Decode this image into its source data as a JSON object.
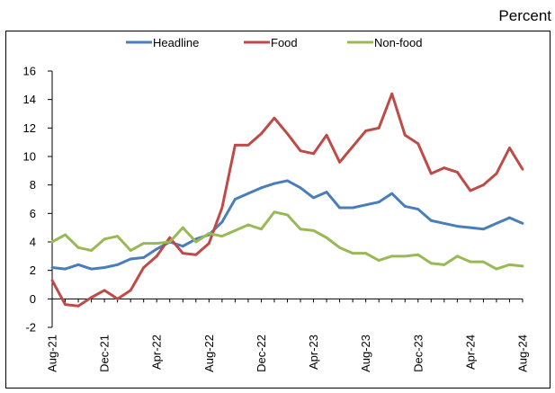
{
  "unit_label": "Percent",
  "chart_data": {
    "type": "line",
    "title": "",
    "xlabel": "",
    "ylabel": "",
    "ylim": [
      -2,
      16
    ],
    "yticks": [
      -2,
      0,
      2,
      4,
      6,
      8,
      10,
      12,
      14,
      16
    ],
    "grid": false,
    "legend_position": "top",
    "x": [
      "Aug-21",
      "Sep-21",
      "Oct-21",
      "Nov-21",
      "Dec-21",
      "Jan-22",
      "Feb-22",
      "Mar-22",
      "Apr-22",
      "May-22",
      "Jun-22",
      "Jul-22",
      "Aug-22",
      "Sep-22",
      "Oct-22",
      "Nov-22",
      "Dec-22",
      "Jan-23",
      "Feb-23",
      "Mar-23",
      "Apr-23",
      "May-23",
      "Jun-23",
      "Jul-23",
      "Aug-23",
      "Sep-23",
      "Oct-23",
      "Nov-23",
      "Dec-23",
      "Jan-24",
      "Feb-24",
      "Mar-24",
      "Apr-24",
      "May-24",
      "Jun-24",
      "Jul-24",
      "Aug-24"
    ],
    "x_tick_labels": [
      "Aug-21",
      "Dec-21",
      "Apr-22",
      "Aug-22",
      "Dec-22",
      "Apr-23",
      "Aug-23",
      "Dec-23",
      "Apr-24",
      "Aug-24"
    ],
    "series": [
      {
        "name": "Headline",
        "color": "#4a7ebb",
        "values": [
          2.2,
          2.1,
          2.4,
          2.1,
          2.2,
          2.4,
          2.8,
          2.9,
          3.5,
          4.0,
          3.7,
          4.2,
          4.5,
          5.4,
          7.0,
          7.4,
          7.8,
          8.1,
          8.3,
          7.8,
          7.1,
          7.5,
          6.4,
          6.4,
          6.6,
          6.8,
          7.4,
          6.5,
          6.3,
          5.5,
          5.3,
          5.1,
          5.0,
          4.9,
          5.3,
          5.7,
          5.3
        ]
      },
      {
        "name": "Food",
        "color": "#be4b48",
        "values": [
          1.3,
          -0.4,
          -0.5,
          0.1,
          0.6,
          0.0,
          0.6,
          2.2,
          3.0,
          4.3,
          3.2,
          3.1,
          3.9,
          6.4,
          10.8,
          10.8,
          11.6,
          12.7,
          11.6,
          10.4,
          10.2,
          11.5,
          9.6,
          10.7,
          11.8,
          12.0,
          14.4,
          11.5,
          10.9,
          8.8,
          9.2,
          8.9,
          7.6,
          8.0,
          8.8,
          10.6,
          9.1
        ]
      },
      {
        "name": "Non-food",
        "color": "#98b954",
        "values": [
          4.0,
          4.5,
          3.6,
          3.4,
          4.2,
          4.4,
          3.4,
          3.9,
          3.9,
          4.0,
          5.0,
          4.0,
          4.6,
          4.4,
          4.8,
          5.2,
          4.9,
          6.1,
          5.9,
          4.9,
          4.8,
          4.3,
          3.6,
          3.2,
          3.2,
          2.7,
          3.0,
          3.0,
          3.1,
          2.5,
          2.4,
          3.0,
          2.6,
          2.6,
          2.1,
          2.4,
          2.3
        ]
      }
    ]
  }
}
